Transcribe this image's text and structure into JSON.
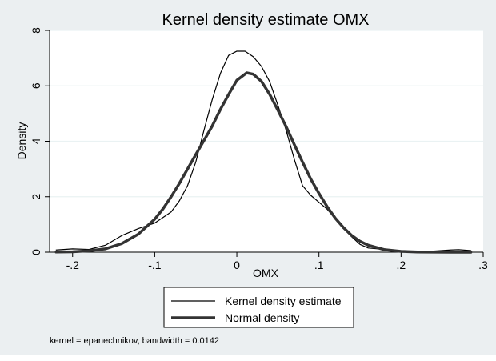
{
  "chart_data": {
    "type": "line",
    "title": "Kernel density estimate OMX",
    "xlabel": "OMX",
    "ylabel": "Density",
    "xlim": [
      -0.228,
      0.3
    ],
    "ylim": [
      0,
      8
    ],
    "x_ticks": [
      -0.2,
      -0.1,
      0,
      0.1,
      0.2,
      0.3
    ],
    "x_tick_labels": [
      "-.2",
      "-.1",
      "0",
      ".1",
      ".2",
      ".3"
    ],
    "y_ticks": [
      0,
      2,
      4,
      6,
      8
    ],
    "y_tick_labels": [
      "0",
      "2",
      "4",
      "6",
      "8"
    ],
    "grid": true,
    "legend_position": "bottom",
    "series": [
      {
        "name": "Kernel density estimate",
        "color": "#000000",
        "x": [
          -0.22,
          -0.2,
          -0.18,
          -0.16,
          -0.14,
          -0.12,
          -0.1,
          -0.09,
          -0.08,
          -0.07,
          -0.06,
          -0.05,
          -0.04,
          -0.03,
          -0.02,
          -0.01,
          0,
          0.01,
          0.02,
          0.03,
          0.04,
          0.05,
          0.06,
          0.07,
          0.08,
          0.09,
          0.1,
          0.11,
          0.12,
          0.13,
          0.14,
          0.15,
          0.16,
          0.18,
          0.2,
          0.22,
          0.24,
          0.26,
          0.27,
          0.285
        ],
        "values": [
          0.08,
          0.12,
          0.1,
          0.25,
          0.6,
          0.85,
          1.05,
          1.25,
          1.45,
          1.85,
          2.4,
          3.25,
          4.4,
          5.5,
          6.45,
          7.1,
          7.25,
          7.25,
          7.05,
          6.7,
          6.15,
          5.3,
          4.4,
          3.35,
          2.4,
          2.05,
          1.8,
          1.55,
          1.2,
          0.85,
          0.55,
          0.28,
          0.15,
          0.1,
          0.05,
          0.02,
          0.04,
          0.08,
          0.09,
          0.06
        ]
      },
      {
        "name": "Normal density",
        "color": "#333333",
        "mean": 0.012,
        "sd": 0.0616,
        "x": [
          -0.22,
          -0.2,
          -0.18,
          -0.16,
          -0.14,
          -0.12,
          -0.1,
          -0.09,
          -0.08,
          -0.07,
          -0.06,
          -0.05,
          -0.04,
          -0.03,
          -0.02,
          -0.01,
          0,
          0.012,
          0.02,
          0.03,
          0.04,
          0.05,
          0.06,
          0.07,
          0.08,
          0.09,
          0.1,
          0.11,
          0.12,
          0.13,
          0.14,
          0.15,
          0.16,
          0.18,
          0.2,
          0.22,
          0.24,
          0.26,
          0.285
        ],
        "values": [
          0.006,
          0.016,
          0.05,
          0.12,
          0.31,
          0.65,
          1.19,
          1.56,
          2.0,
          2.48,
          3.0,
          3.52,
          4.03,
          4.55,
          5.15,
          5.69,
          6.2,
          6.47,
          6.42,
          6.16,
          5.69,
          5.12,
          4.53,
          3.88,
          3.25,
          2.64,
          2.12,
          1.64,
          1.22,
          0.88,
          0.6,
          0.39,
          0.25,
          0.09,
          0.03,
          0.008,
          0.002,
          0.0005,
          0.0001
        ]
      }
    ],
    "note": "kernel = epanechnikov, bandwidth = 0.0142"
  }
}
